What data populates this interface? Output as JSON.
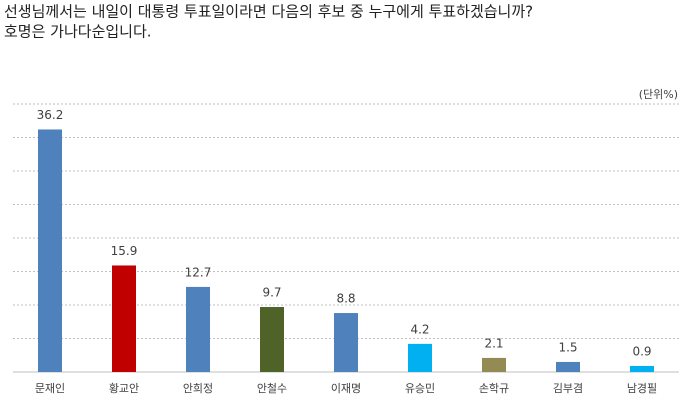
{
  "chart_data": {
    "type": "bar",
    "title": "선생님께서는 내일이 대통령 투표일이라면 다음의 후보 중 누구에게 투표하겠습니까?",
    "subtitle": "호명은 가나다순입니다.",
    "unit_label": "(단위%)",
    "categories": [
      "문재인",
      "황교안",
      "안희정",
      "안철수",
      "이재명",
      "유승민",
      "손학규",
      "김부겸",
      "남경필"
    ],
    "values": [
      36.2,
      15.9,
      12.7,
      9.7,
      8.8,
      4.2,
      2.1,
      1.5,
      0.9
    ],
    "colors": [
      "#4f81bd",
      "#c00000",
      "#4f81bd",
      "#4f6228",
      "#4f81bd",
      "#00b0f0",
      "#948a54",
      "#4f81bd",
      "#00b0f0"
    ],
    "ylim": [
      0,
      40
    ],
    "yticks": [
      0,
      5,
      10,
      15,
      20,
      25,
      30,
      35,
      40
    ],
    "grid": true
  }
}
